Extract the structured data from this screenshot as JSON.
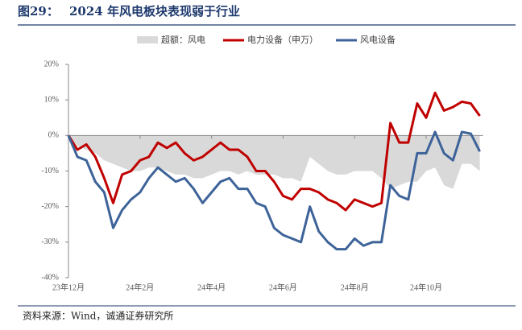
{
  "chart_data": {
    "type": "line",
    "figure_label": "图29：",
    "title": "2024 年风电板块表现弱于行业",
    "source": "资料来源：Wind，诚通证券研究所",
    "categories": [
      "23年12月",
      null,
      null,
      null,
      null,
      null,
      null,
      null,
      "24年2月",
      null,
      null,
      null,
      null,
      null,
      null,
      null,
      "24年4月",
      null,
      null,
      null,
      null,
      null,
      null,
      null,
      "24年6月",
      null,
      null,
      null,
      null,
      null,
      null,
      null,
      "24年8月",
      null,
      null,
      null,
      null,
      null,
      null,
      null,
      "24年10月",
      null,
      null,
      null,
      null,
      null,
      null
    ],
    "series": [
      {
        "name": "超额：风电",
        "kind": "area",
        "color": "#d9d9d9",
        "values": [
          0,
          -3,
          -4,
          -5,
          -7,
          -8,
          -9,
          -10,
          -10,
          -9,
          -9,
          -10,
          -11,
          -11,
          -12,
          -12,
          -11,
          -10,
          -10,
          -11,
          -10,
          -11,
          -11,
          -11,
          -12,
          -12,
          -13,
          -6,
          -8,
          -10,
          -11,
          -11,
          -10,
          -10,
          -10,
          -12,
          -15,
          -14,
          -13,
          -13,
          -10,
          -9,
          -14,
          -15,
          -8,
          -8,
          -10
        ]
      },
      {
        "name": "电力设备（申万）",
        "kind": "line",
        "color": "#c00000",
        "values": [
          0,
          -4,
          -2.5,
          -6,
          -12,
          -19,
          -11,
          -10,
          -7,
          -6,
          -2,
          -3.5,
          -2,
          -5,
          -7,
          -6,
          -4,
          -2,
          -4,
          -4,
          -6,
          -10,
          -10,
          -13,
          -17,
          -18,
          -15,
          -15,
          -16,
          -18,
          -19,
          -21,
          -18,
          -19,
          -20,
          -19,
          3.5,
          -2,
          -2,
          9,
          5,
          12,
          7,
          8,
          9.5,
          9,
          5.5
        ]
      },
      {
        "name": "风电设备",
        "kind": "line",
        "color": "#3d6399",
        "values": [
          0,
          -6,
          -7,
          -13,
          -16,
          -26,
          -21,
          -18,
          -16,
          -12,
          -9,
          -11,
          -13,
          -12,
          -15,
          -19,
          -16,
          -13,
          -12,
          -15,
          -15,
          -19,
          -20,
          -26,
          -28,
          -29,
          -30,
          -20,
          -27,
          -30,
          -32,
          -32,
          -29,
          -31,
          -30,
          -30,
          -14,
          -17,
          -18,
          -5,
          -5,
          1,
          -5,
          -7,
          1,
          0.5,
          -4.5
        ]
      }
    ],
    "ylim": [
      -40,
      20
    ],
    "yticks": [
      {
        "value": -40,
        "label": "-40%"
      },
      {
        "value": -30,
        "label": "-30%"
      },
      {
        "value": -20,
        "label": "-20%"
      },
      {
        "value": -10,
        "label": "-10%"
      },
      {
        "value": 0,
        "label": "0%"
      },
      {
        "value": 10,
        "label": "10%"
      },
      {
        "value": 20,
        "label": "20%"
      }
    ],
    "legend": "top"
  }
}
